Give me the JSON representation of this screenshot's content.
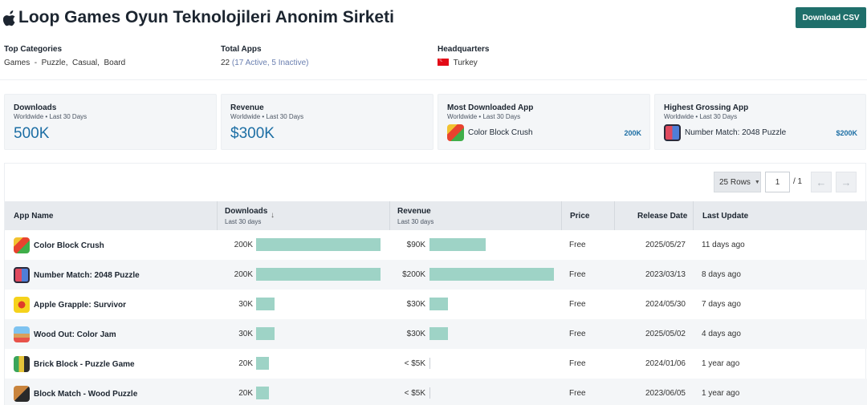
{
  "header": {
    "title": "Loop Games Oyun Teknolojileri Anonim Sirketi",
    "download_csv": "Download CSV"
  },
  "info": {
    "top_categories": {
      "label": "Top Categories",
      "value": "Games  -  Puzzle,  Casual,  Board"
    },
    "total_apps": {
      "label": "Total Apps",
      "value": "22",
      "sub": "(17 Active, 5 Inactive)"
    },
    "headquarters": {
      "label": "Headquarters",
      "value": "Turkey"
    }
  },
  "cards": {
    "downloads": {
      "title": "Downloads",
      "sub": "Worldwide • Last 30 Days",
      "value": "500K"
    },
    "revenue": {
      "title": "Revenue",
      "sub": "Worldwide • Last 30 Days",
      "value": "$300K"
    },
    "most_downloaded": {
      "title": "Most Downloaded App",
      "sub": "Worldwide • Last 30 Days",
      "app": "Color Block Crush",
      "value": "200K"
    },
    "highest_grossing": {
      "title": "Highest Grossing App",
      "sub": "Worldwide • Last 30 Days",
      "app": "Number Match: 2048 Puzzle",
      "value": "$200K"
    }
  },
  "pagination": {
    "rows": "25 Rows",
    "page": "1",
    "of": "/ 1"
  },
  "table": {
    "columns": {
      "app_name": "App Name",
      "downloads": "Downloads",
      "downloads_sub": "Last 30 days",
      "revenue": "Revenue",
      "revenue_sub": "Last 30 days",
      "price": "Price",
      "release_date": "Release Date",
      "last_update": "Last Update"
    },
    "rows": [
      {
        "name": "Color Block Crush",
        "downloads": "200K",
        "downloads_share": 1.0,
        "revenue": "$90K",
        "revenue_share": 0.45,
        "price": "Free",
        "release": "2025/05/27",
        "update": "11 days ago",
        "icon": "color-block-crush-icon"
      },
      {
        "name": "Number Match: 2048 Puzzle",
        "downloads": "200K",
        "downloads_share": 1.0,
        "revenue": "$200K",
        "revenue_share": 1.0,
        "price": "Free",
        "release": "2023/03/13",
        "update": "8 days ago",
        "icon": "number-match-icon"
      },
      {
        "name": "Apple Grapple: Survivor",
        "downloads": "30K",
        "downloads_share": 0.15,
        "revenue": "$30K",
        "revenue_share": 0.15,
        "price": "Free",
        "release": "2024/05/30",
        "update": "7 days ago",
        "icon": "apple-grapple-icon"
      },
      {
        "name": "Wood Out: Color Jam",
        "downloads": "30K",
        "downloads_share": 0.15,
        "revenue": "$30K",
        "revenue_share": 0.15,
        "price": "Free",
        "release": "2025/05/02",
        "update": "4 days ago",
        "icon": "wood-out-icon"
      },
      {
        "name": "Brick Block - Puzzle Game",
        "downloads": "20K",
        "downloads_share": 0.1,
        "revenue": "< $5K",
        "revenue_share": 0,
        "price": "Free",
        "release": "2024/01/06",
        "update": "1 year ago",
        "icon": "brick-block-icon"
      },
      {
        "name": "Block Match - Wood Puzzle",
        "downloads": "20K",
        "downloads_share": 0.1,
        "revenue": "< $5K",
        "revenue_share": 0,
        "price": "Free",
        "release": "2023/06/05",
        "update": "1 year ago",
        "icon": "block-match-icon"
      }
    ]
  },
  "colors": {
    "accent": "#1f6f6b",
    "metric": "#1c6ea4",
    "bar": "#9ed3c6"
  }
}
